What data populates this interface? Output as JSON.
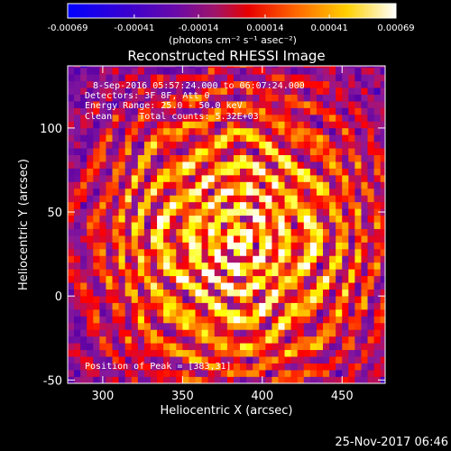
{
  "chart_data": {
    "type": "heatmap",
    "title": "Reconstructed RHESSI Image",
    "xlabel": "Heliocentric X (arcsec)",
    "ylabel": "Heliocentric Y (arcsec)",
    "xlim": [
      278,
      477
    ],
    "ylim": [
      -52,
      137
    ],
    "x_ticks": [
      300,
      350,
      400,
      450
    ],
    "y_ticks": [
      -50,
      0,
      50,
      100
    ],
    "colorbar": {
      "ticks": [
        "-0.00069",
        "-0.00041",
        "-0.00014",
        "0.00014",
        "0.00041",
        "0.00069"
      ],
      "range": [
        -0.00069,
        0.00069
      ],
      "units": "(photons cm⁻² s⁻¹ asec⁻²)"
    },
    "annotations": [
      "8-Sep-2016 05:57:24.000 to 06:07:24.000",
      "Detectors: 3F 8F, Att 0",
      "Energy Range: 25.0 - 50.0 keV",
      "Clean     Total counts: 5.32E+03"
    ],
    "peak_text": "Position of Peak = [383,31]",
    "peak_position": [
      383,
      31
    ],
    "grid": false,
    "colormap": [
      "#0000ff",
      "#5a00a6",
      "#8b1a9b",
      "#ff0000",
      "#ff8a00",
      "#ffff00",
      "#ffffff"
    ]
  },
  "footer": {
    "date": "25-Nov-2017 06:46"
  }
}
